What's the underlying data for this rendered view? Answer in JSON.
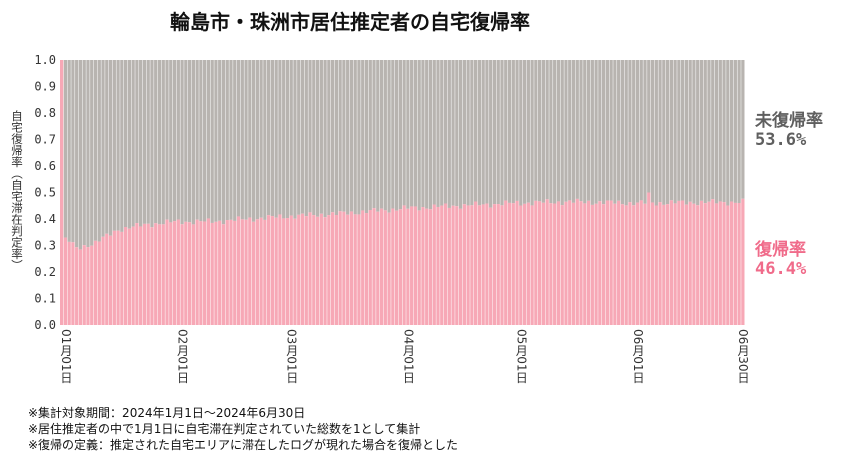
{
  "chart_data": {
    "type": "bar",
    "stacked": true,
    "title": "輪島市・珠洲市居住推定者の自宅復帰率",
    "ylabel": "自宅復帰率（自宅滞在判定率）",
    "ylim": [
      0,
      1.0
    ],
    "yticks": [
      "0.0",
      "0.1",
      "0.2",
      "0.3",
      "0.4",
      "0.5",
      "0.6",
      "0.7",
      "0.8",
      "0.9",
      "1.0"
    ],
    "x_start": "2024-01-01",
    "x_end": "2024-06-30",
    "xtick_labels": [
      "01月01日",
      "02月01日",
      "03月01日",
      "04月01日",
      "05月01日",
      "06月01日",
      "06月30日"
    ],
    "series": [
      {
        "name": "復帰率",
        "color": "#f7a8b6"
      },
      {
        "name": "未復帰率",
        "color": "#b8b4b0"
      }
    ],
    "anchors": [
      [
        "2024-01-01",
        1.0
      ],
      [
        "2024-01-02",
        0.33
      ],
      [
        "2024-01-05",
        0.29
      ],
      [
        "2024-01-10",
        0.31
      ],
      [
        "2024-01-16",
        0.36
      ],
      [
        "2024-01-24",
        0.38
      ],
      [
        "2024-02-01",
        0.39
      ],
      [
        "2024-02-10",
        0.39
      ],
      [
        "2024-02-20",
        0.4
      ],
      [
        "2024-03-01",
        0.41
      ],
      [
        "2024-03-15",
        0.42
      ],
      [
        "2024-04-01",
        0.44
      ],
      [
        "2024-04-15",
        0.45
      ],
      [
        "2024-05-01",
        0.46
      ],
      [
        "2024-05-15",
        0.465
      ],
      [
        "2024-06-01",
        0.46
      ],
      [
        "2024-06-30",
        0.464
      ]
    ],
    "spikes": [
      [
        "2024-06-05",
        0.5
      ]
    ],
    "final": {
      "return_rate": 0.464,
      "not_returned_rate": 0.536
    }
  },
  "side": {
    "not_returned_label": "未復帰率",
    "not_returned_value": "53.6%",
    "returned_label": "復帰率",
    "returned_value": "46.4%"
  },
  "notes": [
    "※集計対象期間：2024年1月1日～2024年6月30日",
    "※居住推定者の中で1月1日に自宅滞在判定されていた総数を1として集計",
    "※復帰の定義：推定された自宅エリアに滞在したログが現れた場合を復帰とした"
  ],
  "colors": {
    "returned": "#f7a8b6",
    "not_returned": "#b8b4b0",
    "returned_text": "#f06b8a",
    "not_returned_text": "#5f5f5f"
  }
}
